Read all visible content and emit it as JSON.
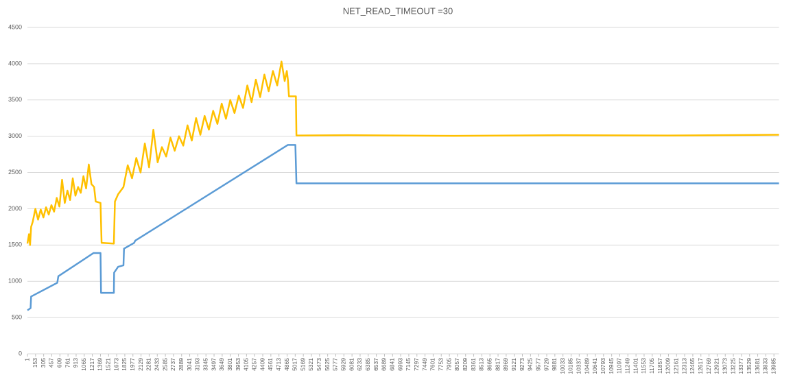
{
  "chart_data": {
    "type": "line",
    "title": "NET_READ_TIMEOUT =30",
    "xlim": [
      1,
      14080
    ],
    "xticks": [
      1,
      153,
      305,
      457,
      609,
      761,
      913,
      1065,
      1217,
      1369,
      1521,
      1673,
      1825,
      1977,
      2129,
      2281,
      2433,
      2585,
      2737,
      2889,
      3041,
      3193,
      3345,
      3497,
      3649,
      3801,
      3953,
      4105,
      4257,
      4409,
      4561,
      4713,
      4865,
      5017,
      5169,
      5321,
      5473,
      5625,
      5777,
      5929,
      6081,
      6233,
      6385,
      6537,
      6689,
      6841,
      6993,
      7145,
      7297,
      7449,
      7601,
      7753,
      7905,
      8057,
      8209,
      8361,
      8513,
      8665,
      8817,
      8969,
      9121,
      9273,
      9425,
      9577,
      9729,
      9881,
      10033,
      10185,
      10337,
      10489,
      10641,
      10793,
      10945,
      11097,
      11249,
      11401,
      11553,
      11705,
      11857,
      12009,
      12161,
      12313,
      12465,
      12617,
      12769,
      12921,
      13073,
      13225,
      13377,
      13529,
      13681,
      13833,
      13985
    ],
    "ylim": [
      0,
      4500
    ],
    "yticks": [
      0,
      500,
      1000,
      1500,
      2000,
      2500,
      3000,
      3500,
      4000,
      4500
    ],
    "grid": true,
    "series": [
      {
        "color": "#ffc000",
        "x": [
          1,
          30,
          50,
          70,
          100,
          150,
          200,
          250,
          300,
          350,
          400,
          450,
          500,
          550,
          600,
          650,
          700,
          750,
          800,
          850,
          900,
          950,
          1000,
          1050,
          1100,
          1150,
          1200,
          1250,
          1280,
          1370,
          1390,
          1620,
          1640,
          1700,
          1800,
          1880,
          1960,
          2040,
          2120,
          2200,
          2280,
          2360,
          2440,
          2520,
          2600,
          2680,
          2760,
          2840,
          2920,
          3000,
          3080,
          3160,
          3240,
          3320,
          3400,
          3480,
          3560,
          3640,
          3720,
          3800,
          3880,
          3960,
          4040,
          4120,
          4200,
          4280,
          4360,
          4440,
          4520,
          4600,
          4680,
          4760,
          4820,
          4860,
          4880,
          4900,
          5030,
          5040,
          6000,
          8000,
          10000,
          12000,
          14080
        ],
        "values": [
          1520,
          1650,
          1500,
          1750,
          1820,
          2000,
          1850,
          1990,
          1880,
          2020,
          1920,
          2050,
          1960,
          2150,
          2030,
          2400,
          2080,
          2250,
          2120,
          2420,
          2180,
          2300,
          2220,
          2450,
          2280,
          2610,
          2340,
          2300,
          2100,
          2080,
          1530,
          1520,
          2100,
          2200,
          2300,
          2600,
          2420,
          2700,
          2500,
          2900,
          2570,
          3090,
          2640,
          2850,
          2720,
          2980,
          2800,
          3000,
          2870,
          3150,
          2940,
          3250,
          3020,
          3280,
          3090,
          3350,
          3170,
          3450,
          3240,
          3500,
          3320,
          3560,
          3390,
          3700,
          3470,
          3780,
          3540,
          3850,
          3620,
          3900,
          3700,
          4030,
          3760,
          3900,
          3780,
          3550,
          3550,
          3010,
          3015,
          3005,
          3015,
          3010,
          3020
        ]
      },
      {
        "color": "#5b9bd5",
        "x": [
          1,
          60,
          70,
          560,
          580,
          1240,
          1370,
          1380,
          1620,
          1625,
          1700,
          1800,
          1810,
          2000,
          2020,
          4880,
          5020,
          5040,
          14080
        ],
        "values": [
          600,
          630,
          790,
          980,
          1070,
          1390,
          1390,
          840,
          840,
          1120,
          1200,
          1220,
          1450,
          1530,
          1560,
          2880,
          2880,
          2350,
          2350
        ]
      }
    ]
  }
}
